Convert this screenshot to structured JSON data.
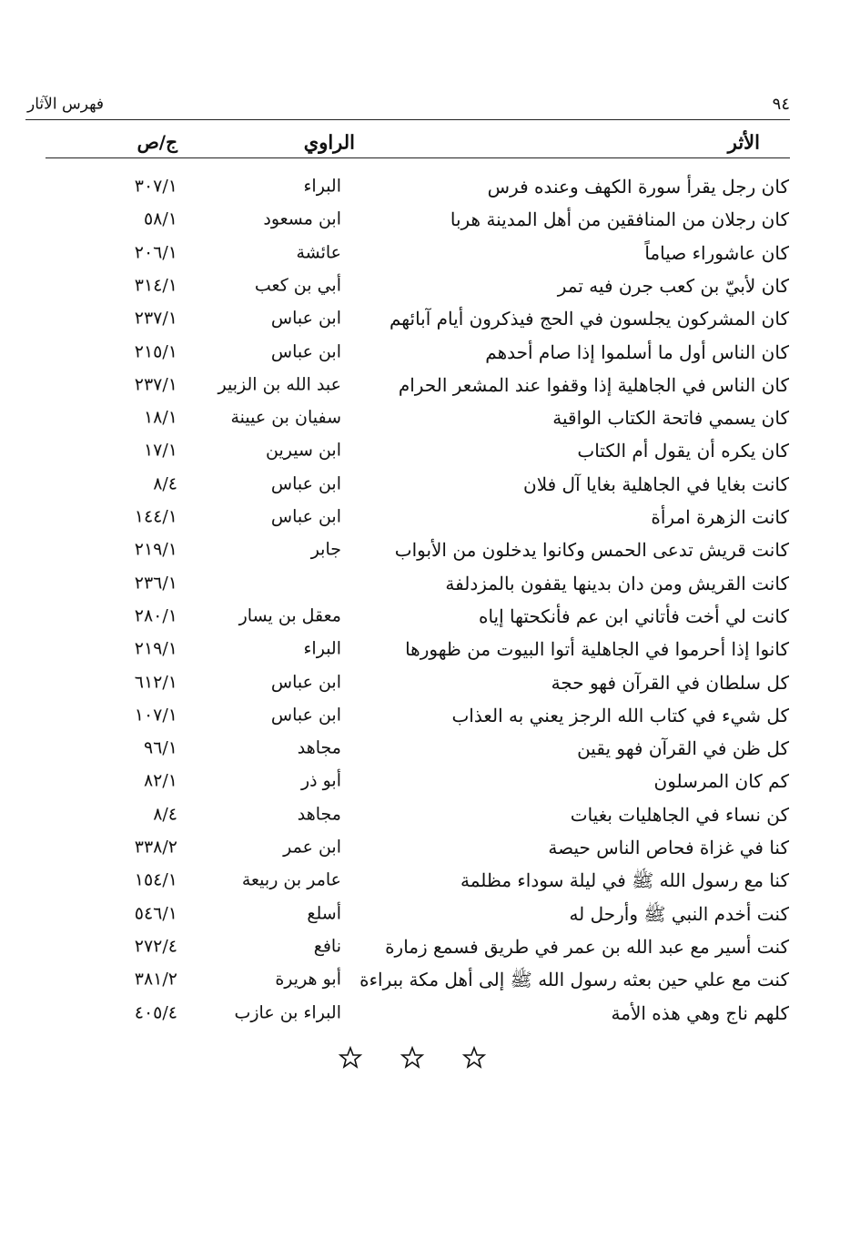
{
  "header": {
    "page_number": "٩٤",
    "title": "فهرس الآثار"
  },
  "table": {
    "columns": [
      "الأثر",
      "الراوي",
      "ج/ص"
    ],
    "rows": [
      [
        "كان رجل يقرأ سورة الكهف وعنده فرس",
        "البراء",
        "٣٠٧/١"
      ],
      [
        "كان رجلان من المنافقين من أهل المدينة هربا",
        "ابن مسعود",
        "٥٨/١"
      ],
      [
        "كان عاشوراء صياماً",
        "عائشة",
        "٢٠٦/١"
      ],
      [
        "كان لأبيّ بن كعب جرن فيه تمر",
        "أبي بن كعب",
        "٣١٤/١"
      ],
      [
        "كان المشركون يجلسون في الحج فيذكرون أيام آبائهم",
        "ابن عباس",
        "٢٣٧/١"
      ],
      [
        "كان الناس أول ما أسلموا إذا صام أحدهم",
        "ابن عباس",
        "٢١٥/١"
      ],
      [
        "كان الناس في الجاهلية إذا وقفوا عند المشعر الحرام",
        "عبد الله بن الزبير",
        "٢٣٧/١"
      ],
      [
        "كان يسمي فاتحة الكتاب الواقية",
        "سفيان بن عيينة",
        "١٨/١"
      ],
      [
        "كان يكره أن يقول أم الكتاب",
        "ابن سيرين",
        "١٧/١"
      ],
      [
        "كانت بغايا في الجاهلية بغايا آل فلان",
        "ابن عباس",
        "٨/٤"
      ],
      [
        "كانت الزهرة امرأة",
        "ابن عباس",
        "١٤٤/١"
      ],
      [
        "كانت قريش تدعى الحمس وكانوا يدخلون من الأبواب",
        "جابر",
        "٢١٩/١"
      ],
      [
        "كانت القريش ومن دان بدينها يقفون بالمزدلفة",
        null,
        "٢٣٦/١"
      ],
      [
        "كانت لي أخت فأتاني ابن عم فأنكحتها إياه",
        "معقل بن يسار",
        "٢٨٠/١"
      ],
      [
        "كانوا إذا أحرموا في الجاهلية أتوا البيوت من ظهورها",
        "البراء",
        "٢١٩/١"
      ],
      [
        "كل سلطان في القرآن فهو حجة",
        "ابن عباس",
        "٦١٢/١"
      ],
      [
        "كل شيء في كتاب الله الرجز يعني به العذاب",
        "ابن عباس",
        "١٠٧/١"
      ],
      [
        "كل ظن في القرآن فهو يقين",
        "مجاهد",
        "٩٦/١"
      ],
      [
        "كم كان المرسلون",
        "أبو ذر",
        "٨٢/١"
      ],
      [
        "كن نساء في الجاهليات بغيات",
        "مجاهد",
        "٨/٤"
      ],
      [
        "كنا في غزاة فحاص الناس حيصة",
        "ابن عمر",
        "٣٣٨/٢"
      ],
      [
        "كنا مع رسول الله ﷺ في ليلة سوداء مظلمة",
        "عامر بن ربيعة",
        "١٥٤/١"
      ],
      [
        "كنت أخدم النبي ﷺ وأرحل له",
        "أسلع",
        "٥٤٦/١"
      ],
      [
        "كنت أسير مع عبد الله بن عمر في طريق فسمع زمارة",
        "نافع",
        "٢٧٢/٤"
      ],
      [
        "كنت مع علي حين بعثه رسول الله ﷺ إلى أهل مكة ببراءة",
        "أبو هريرة",
        "٣٨١/٢"
      ],
      [
        "كلهم ناج وهي هذه الأمة",
        "البراء بن عازب",
        "٤٠٥/٤"
      ]
    ]
  }
}
